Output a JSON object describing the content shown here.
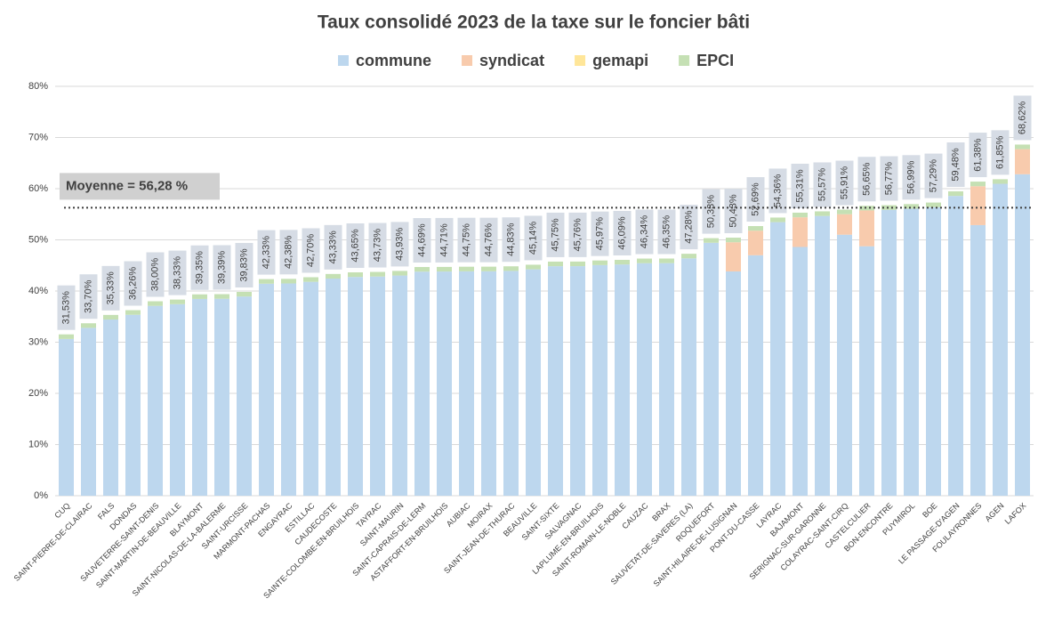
{
  "chart_data": {
    "type": "stacked_bar",
    "title": "Taux consolidé 2023 de la taxe sur le foncier bâti",
    "categories": [
      "CUQ",
      "SAINT-PIERRE-DE-CLAIRAC",
      "FALS",
      "DONDAS",
      "SAUVETERRE-SAINT-DENIS",
      "SAINT-MARTIN-DE-BEAUVILLE",
      "BLAYMONT",
      "SAINT-NICOLAS-DE-LA-BALERME",
      "SAINT-URCISSE",
      "MARMONT-PACHAS",
      "ENGAYRAC",
      "ESTILLAC",
      "CAUDECOSTE",
      "SAINTE-COLOMBE-EN-BRUILHOIS",
      "TAYRAC",
      "SAINT-MAURIN",
      "SAINT-CAPRAIS-DE-LERM",
      "ASTAFFORT-EN-BRUILHOIS",
      "AUBIAC",
      "MOIRAX",
      "SAINT-JEAN-DE-THURAC",
      "BEAUVILLE",
      "SAINT-SIXTE",
      "SALVAGNAC",
      "LAPLUME-EN-BRUILHOIS",
      "SAINT-ROMAIN-LE-NOBLE",
      "CAUZAC",
      "BRAX",
      "SAUVETAT-DE-SAVERES (LA)",
      "ROQUEFORT",
      "SAINT-HILAIRE-DE-LUSIGNAN",
      "PONT-DU-CASSE",
      "LAYRAC",
      "BAJAMONT",
      "SERIGNAC-SUR-GARONNE",
      "COLAYRAC-SAINT-CIRQ",
      "CASTELCULIER",
      "BON-ENCONTRE",
      "PUYMIROL",
      "BOE",
      "LE PASSAGE-D'AGEN",
      "FOULAYRONNES",
      "AGEN",
      "LAFOX"
    ],
    "series": [
      {
        "name": "commune",
        "color": "#bdd7ee",
        "values": [
          30.63,
          32.8,
          34.43,
          35.36,
          37.1,
          37.43,
          38.45,
          38.49,
          38.93,
          41.43,
          41.48,
          41.8,
          42.43,
          42.75,
          42.83,
          43.03,
          43.79,
          43.81,
          43.85,
          43.86,
          43.93,
          44.24,
          44.85,
          44.86,
          45.07,
          45.19,
          45.44,
          45.45,
          46.38,
          49.43,
          43.83,
          46.99,
          53.46,
          48.61,
          54.67,
          51.01,
          48.75,
          55.87,
          56.09,
          56.39,
          58.58,
          52.88,
          60.95,
          62.82
        ]
      },
      {
        "name": "syndicat",
        "color": "#f8cbad",
        "values": [
          0,
          0,
          0,
          0,
          0,
          0,
          0,
          0,
          0,
          0,
          0,
          0,
          0,
          0,
          0,
          0,
          0,
          0,
          0,
          0,
          0,
          0,
          0,
          0,
          0,
          0,
          0,
          0,
          0,
          0,
          5.7,
          4.8,
          0,
          5.8,
          0,
          4.0,
          7.0,
          0,
          0,
          0,
          0,
          7.6,
          0,
          4.9
        ]
      },
      {
        "name": "gemapi",
        "color": "#ffe699",
        "values": [
          0,
          0,
          0,
          0,
          0,
          0,
          0,
          0,
          0,
          0,
          0,
          0,
          0,
          0,
          0,
          0,
          0,
          0,
          0,
          0,
          0,
          0,
          0,
          0,
          0,
          0,
          0,
          0,
          0,
          0,
          0,
          0,
          0,
          0,
          0,
          0,
          0,
          0,
          0,
          0,
          0,
          0,
          0,
          0
        ]
      },
      {
        "name": "EPCI",
        "color": "#c5e0b4",
        "values": [
          0.9,
          0.9,
          0.9,
          0.9,
          0.9,
          0.9,
          0.9,
          0.9,
          0.9,
          0.9,
          0.9,
          0.9,
          0.9,
          0.9,
          0.9,
          0.9,
          0.9,
          0.9,
          0.9,
          0.9,
          0.9,
          0.9,
          0.9,
          0.9,
          0.9,
          0.9,
          0.9,
          0.9,
          0.9,
          0.9,
          0.9,
          0.9,
          0.9,
          0.9,
          0.9,
          0.9,
          0.9,
          0.9,
          0.9,
          0.9,
          0.9,
          0.9,
          0.9,
          0.9
        ]
      }
    ],
    "totals": [
      31.53,
      33.7,
      35.33,
      36.26,
      38.0,
      38.33,
      39.35,
      39.39,
      39.83,
      42.33,
      42.38,
      42.7,
      43.33,
      43.65,
      43.73,
      43.93,
      44.69,
      44.71,
      44.75,
      44.76,
      44.83,
      45.14,
      45.75,
      45.76,
      45.97,
      46.09,
      46.34,
      46.35,
      47.28,
      50.33,
      50.43,
      52.69,
      54.36,
      55.31,
      55.57,
      55.91,
      56.65,
      56.77,
      56.99,
      57.29,
      59.48,
      61.38,
      61.85,
      68.62
    ],
    "total_labels": [
      "31,53%",
      "33,70%",
      "35,33%",
      "36,26%",
      "38,00%",
      "38,33%",
      "39,35%",
      "39,39%",
      "39,83%",
      "42,33%",
      "42,38%",
      "42,70%",
      "43,33%",
      "43,65%",
      "43,73%",
      "43,93%",
      "44,69%",
      "44,71%",
      "44,75%",
      "44,76%",
      "44,83%",
      "45,14%",
      "45,75%",
      "45,76%",
      "45,97%",
      "46,09%",
      "46,34%",
      "46,35%",
      "47,28%",
      "50,33%",
      "50,43%",
      "52,69%",
      "54,36%",
      "55,31%",
      "55,57%",
      "55,91%",
      "56,65%",
      "56,77%",
      "56,99%",
      "57,29%",
      "59,48%",
      "61,38%",
      "61,85%",
      "68,62%"
    ],
    "mean": {
      "value": 56.28,
      "label": "Moyenne = 56,28 %"
    },
    "ylim": [
      0,
      80
    ],
    "yticks": [
      {
        "value": 0,
        "label": "0%"
      },
      {
        "value": 10,
        "label": "10%"
      },
      {
        "value": 20,
        "label": "20%"
      },
      {
        "value": 30,
        "label": "30%"
      },
      {
        "value": 40,
        "label": "40%"
      },
      {
        "value": 50,
        "label": "50%"
      },
      {
        "value": 60,
        "label": "60%"
      },
      {
        "value": 70,
        "label": "70%"
      },
      {
        "value": 80,
        "label": "80%"
      }
    ],
    "grid": true,
    "legend": "top"
  }
}
